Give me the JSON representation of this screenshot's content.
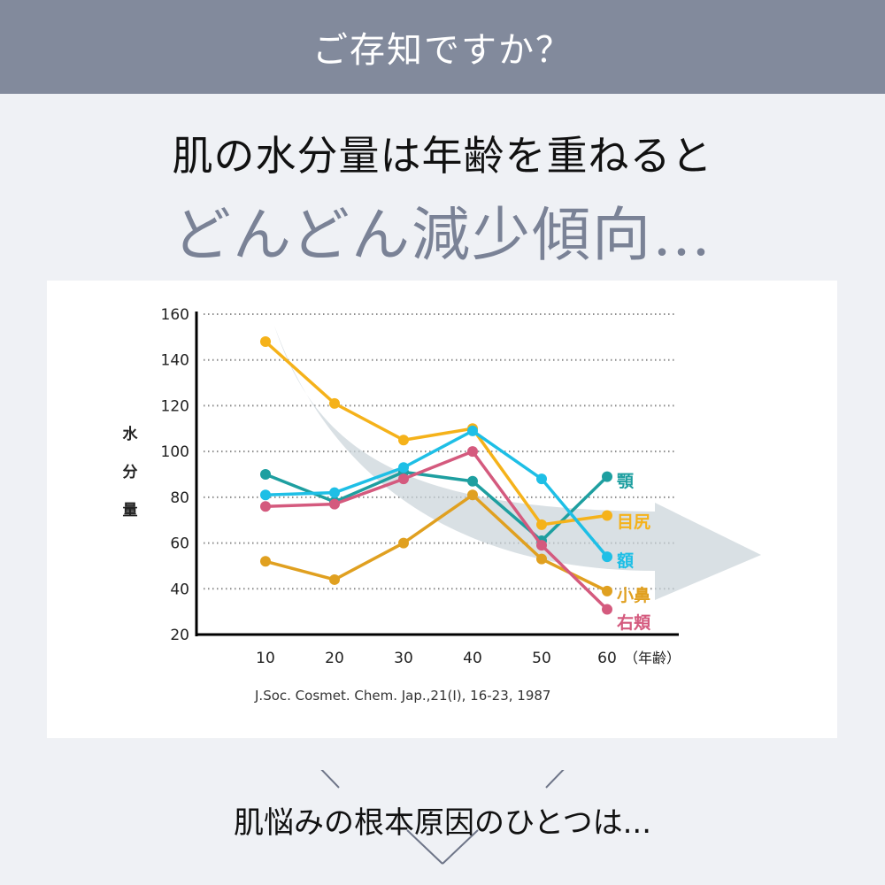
{
  "banner": {
    "title": "ご存知ですか？"
  },
  "headline": {
    "line1": "肌の水分量は年齢を重ねると",
    "line2": "どんどん減少傾向…"
  },
  "chart_data": {
    "type": "line",
    "title": "",
    "xlabel": "（年齢）",
    "ylabel": "水分量",
    "x": [
      10,
      20,
      30,
      40,
      50,
      60
    ],
    "categories": [
      "10",
      "20",
      "30",
      "40",
      "50",
      "60"
    ],
    "ylim": [
      20,
      160
    ],
    "yticks": [
      "160",
      "140",
      "120",
      "100",
      "80",
      "60",
      "40",
      "20"
    ],
    "grid": true,
    "legend_position": "right (inline labels at line ends)",
    "series": [
      {
        "name": "顎",
        "color": "#1e9fa0",
        "values": [
          90,
          78,
          91,
          87,
          61,
          89
        ]
      },
      {
        "name": "目尻",
        "color": "#f5b21a",
        "values": [
          148,
          121,
          105,
          110,
          68,
          72
        ]
      },
      {
        "name": "額",
        "color": "#1ebfe6",
        "values": [
          81,
          82,
          93,
          109,
          88,
          54
        ]
      },
      {
        "name": "小鼻",
        "color": "#e0a020",
        "values": [
          52,
          44,
          60,
          81,
          53,
          39
        ]
      },
      {
        "name": "右頬",
        "color": "#d45a7e",
        "values": [
          76,
          77,
          88,
          100,
          59,
          31
        ]
      }
    ],
    "annotations": [
      "decreasing trend arrow (grey)"
    ],
    "source": "J.Soc. Cosmet. Chem. Jap.,21(Ⅰ), 16-23, 1987"
  },
  "chart_labels": {
    "ylabel_chars": [
      "水",
      "分",
      "量"
    ],
    "xunit": "（年齢）",
    "source": "J.Soc. Cosmet. Chem. Jap.,21(Ⅰ), 16-23, 1987"
  },
  "footer": {
    "text": "肌悩みの根本原因のひとつは..."
  }
}
